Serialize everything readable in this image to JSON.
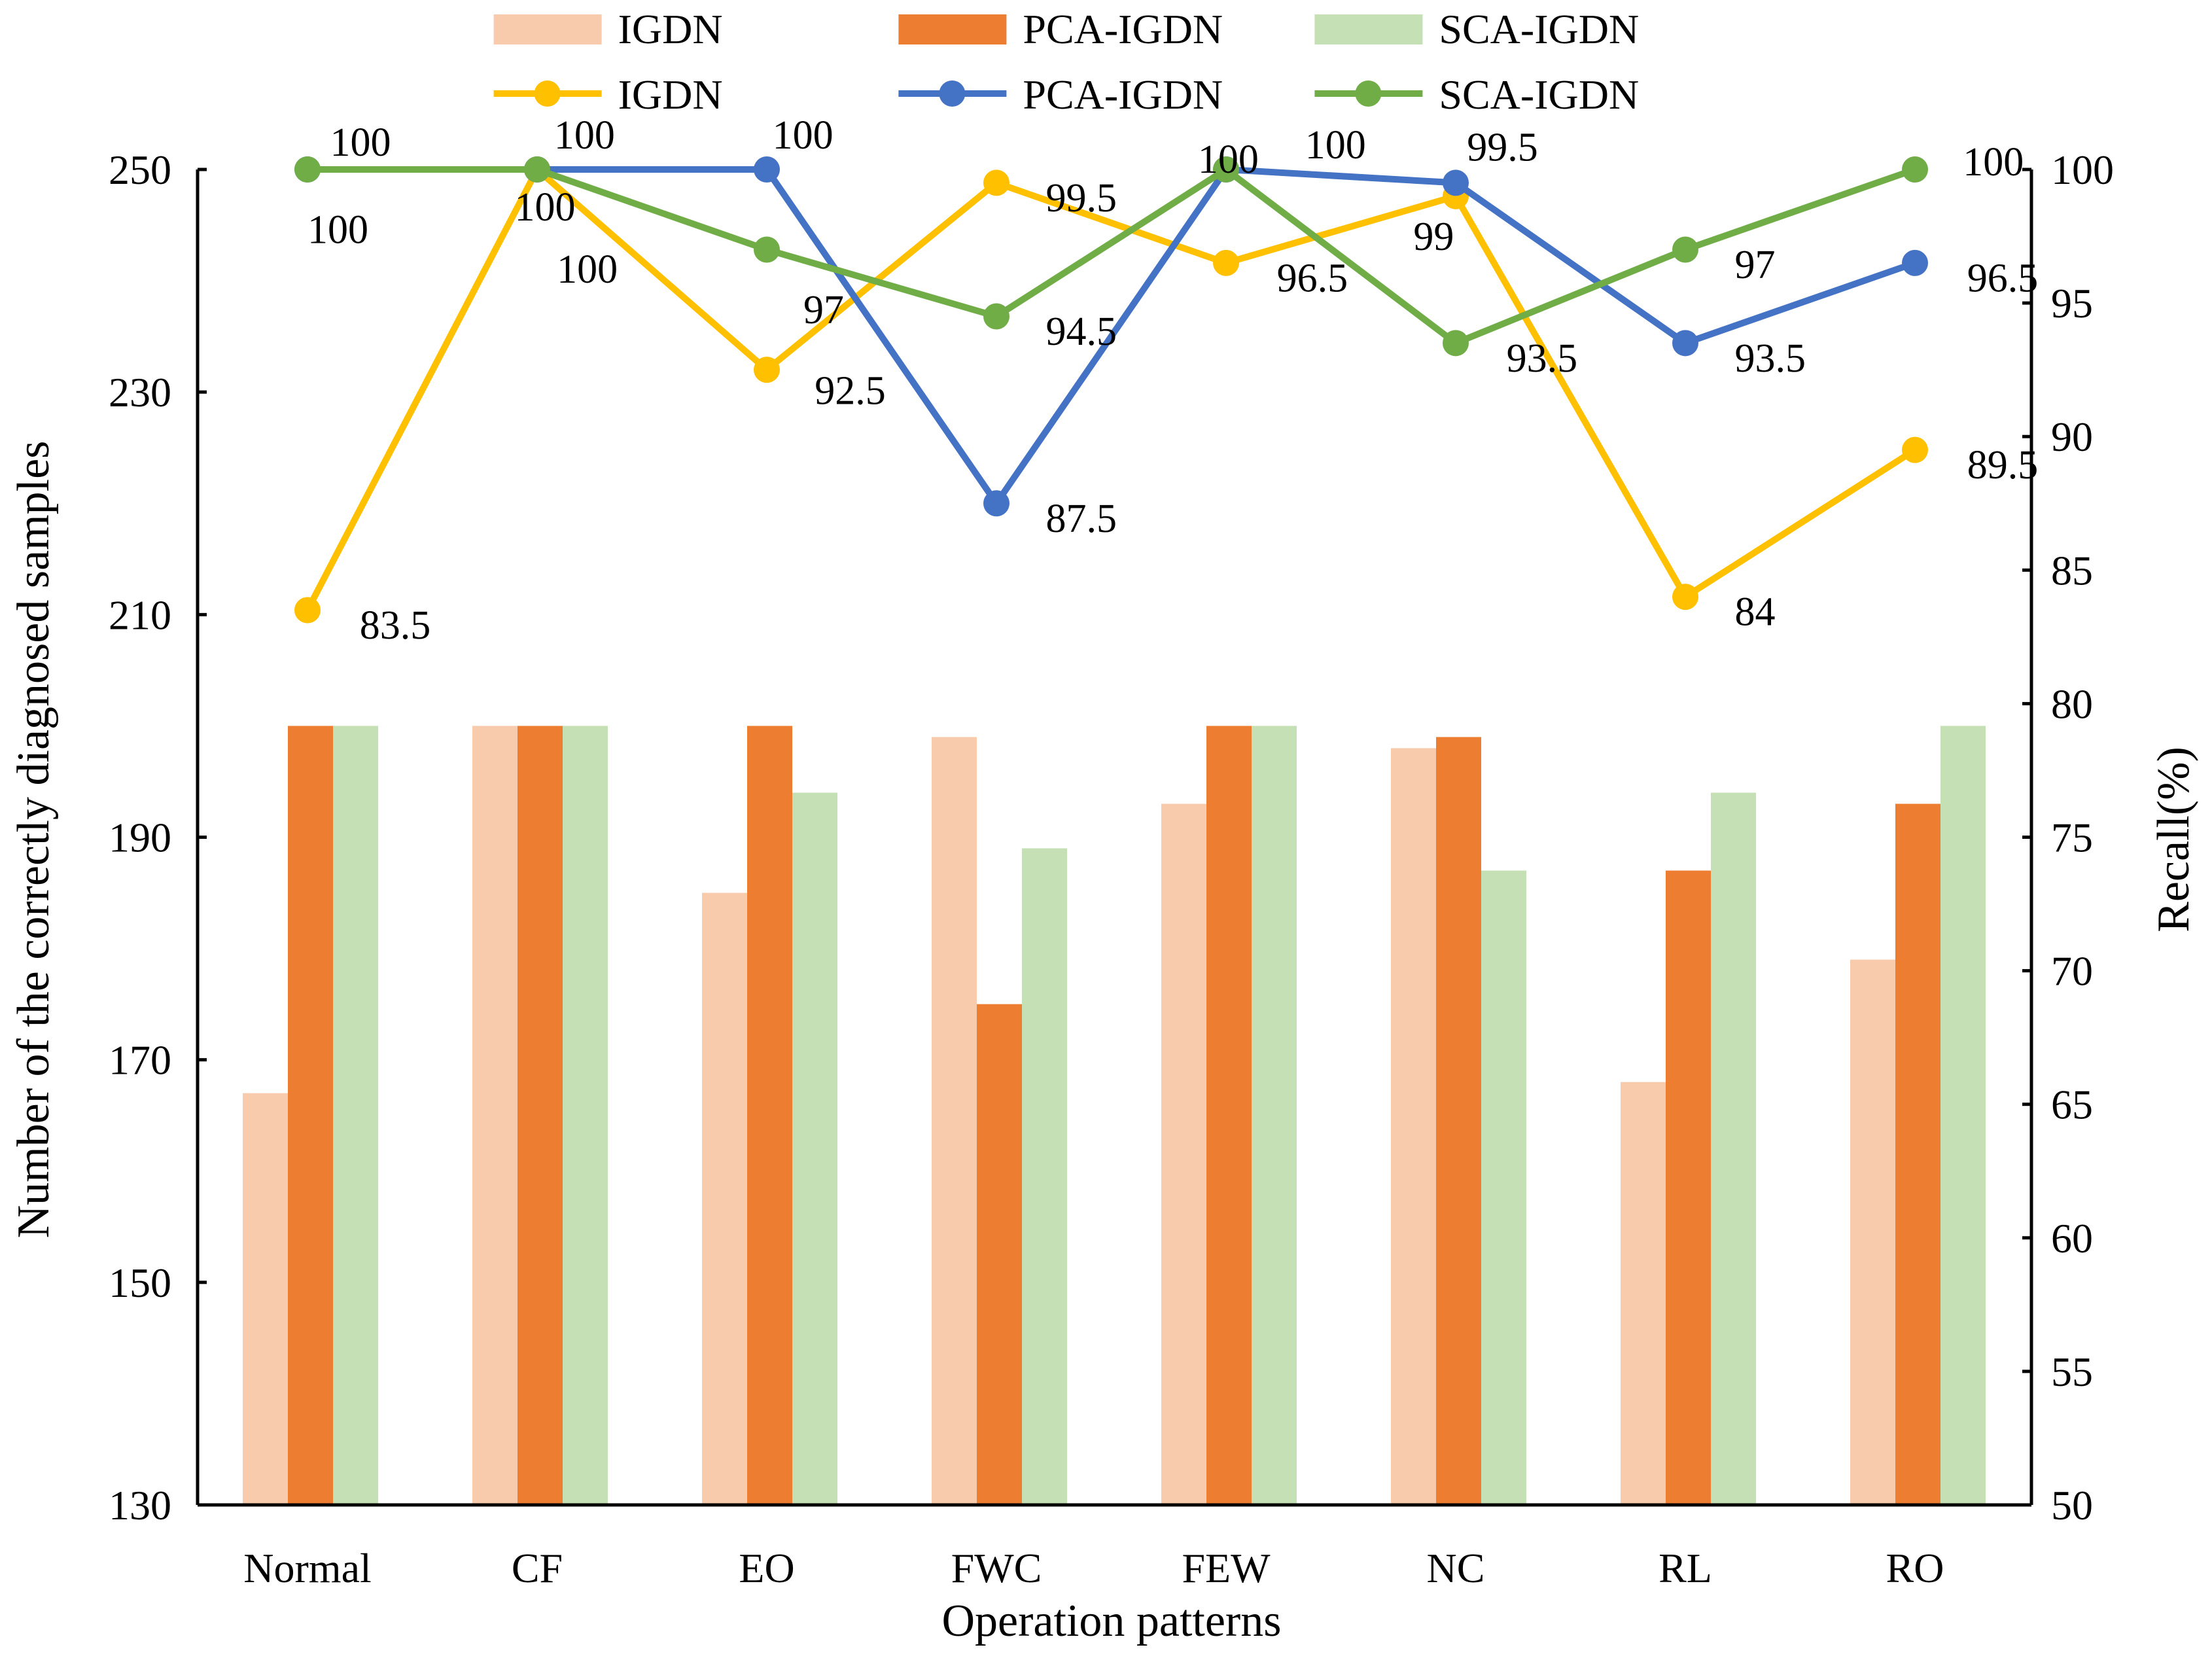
{
  "chart_data": {
    "type": "bar+line",
    "categories": [
      "Normal",
      "CF",
      "EO",
      "FWC",
      "FEW",
      "NC",
      "RL",
      "RO"
    ],
    "xlabel": "Operation patterns",
    "ylabel": "Number of the correctly diagnosed samples",
    "y2label": "Recall(%)",
    "ylim": [
      130,
      250
    ],
    "yticks": [
      130,
      150,
      170,
      190,
      210,
      230,
      250
    ],
    "y2lim": [
      50,
      100
    ],
    "y2ticks": [
      50,
      55,
      60,
      65,
      70,
      75,
      80,
      85,
      90,
      95,
      100
    ],
    "grid": false,
    "legend_position": "top",
    "bar_series": [
      {
        "name": "IGDN",
        "color": "#F8CBAD",
        "values": [
          167,
          200,
          185,
          199,
          193,
          198,
          168,
          179
        ]
      },
      {
        "name": "PCA-IGDN",
        "color": "#ED7D31",
        "values": [
          200,
          200,
          200,
          175,
          200,
          199,
          187,
          193
        ]
      },
      {
        "name": "SCA-IGDN",
        "color": "#C5E0B4",
        "values": [
          200,
          200,
          194,
          189,
          200,
          187,
          194,
          200
        ]
      }
    ],
    "line_series": [
      {
        "name": "IGDN",
        "color": "#FFC000",
        "axis": "right",
        "values": [
          83.5,
          100,
          92.5,
          99.5,
          96.5,
          99,
          84,
          89.5
        ]
      },
      {
        "name": "PCA-IGDN",
        "color": "#4472C4",
        "axis": "right",
        "values": [
          100,
          100,
          100,
          87.5,
          100,
          99.5,
          93.5,
          96.5
        ]
      },
      {
        "name": "SCA-IGDN",
        "color": "#70AD47",
        "axis": "right",
        "values": [
          100,
          100,
          97,
          94.5,
          100,
          93.5,
          97,
          100
        ]
      }
    ]
  }
}
